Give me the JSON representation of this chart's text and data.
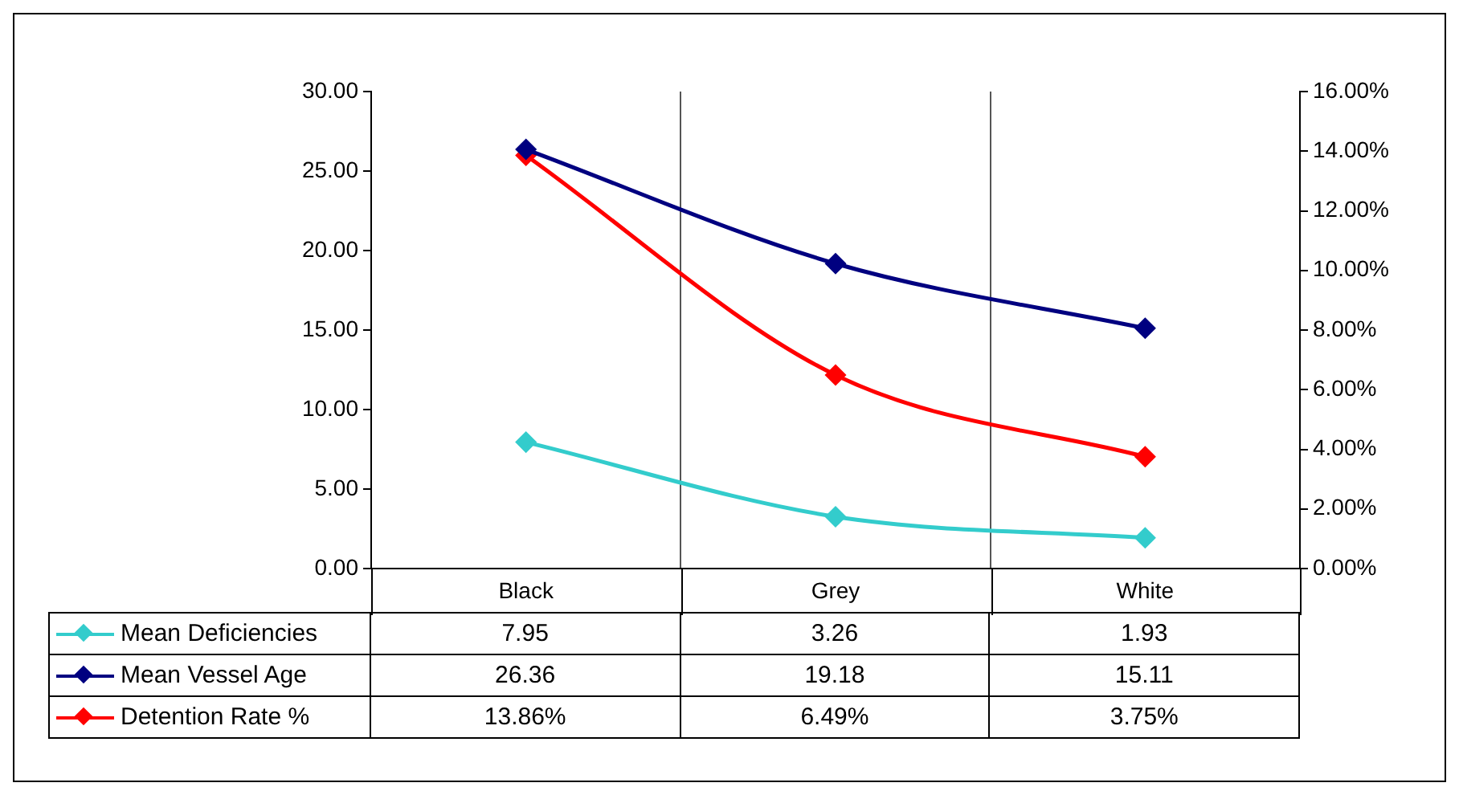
{
  "chart_data": {
    "type": "line",
    "categories": [
      "Black",
      "Grey",
      "White"
    ],
    "series": [
      {
        "name": "Mean Deficiencies",
        "color": "#33cccc",
        "values": [
          7.95,
          3.26,
          1.93
        ],
        "value_labels": [
          "7.95",
          "3.26",
          "1.93"
        ]
      },
      {
        "name": "Mean Vessel Age",
        "color": "#000080",
        "values": [
          26.36,
          19.18,
          15.11
        ],
        "value_labels": [
          "26.36",
          "19.18",
          "15.11"
        ]
      },
      {
        "name": "Detention Rate %",
        "color": "#ff0000",
        "values": [
          13.86,
          6.49,
          3.75
        ],
        "axis": "y2",
        "value_labels": [
          "13.86%",
          "6.49%",
          "3.75%"
        ]
      }
    ],
    "ylim": [
      0,
      30
    ],
    "yticks": [
      {
        "value": 0,
        "label": "0.00"
      },
      {
        "value": 5,
        "label": "5.00"
      },
      {
        "value": 10,
        "label": "10.00"
      },
      {
        "value": 15,
        "label": "15.00"
      },
      {
        "value": 20,
        "label": "20.00"
      },
      {
        "value": 25,
        "label": "25.00"
      },
      {
        "value": 30,
        "label": "30.00"
      }
    ],
    "y2lim": [
      0,
      16
    ],
    "y2ticks": [
      {
        "value": 0,
        "label": "0.00%"
      },
      {
        "value": 2,
        "label": "2.00%"
      },
      {
        "value": 4,
        "label": "4.00%"
      },
      {
        "value": 6,
        "label": "6.00%"
      },
      {
        "value": 8,
        "label": "8.00%"
      },
      {
        "value": 10,
        "label": "10.00%"
      },
      {
        "value": 12,
        "label": "12.00%"
      },
      {
        "value": 14,
        "label": "14.00%"
      },
      {
        "value": 16,
        "label": "16.00%"
      }
    ],
    "grid": "x",
    "legend": "bottom",
    "marker": "diamond",
    "line_style": "solid"
  }
}
